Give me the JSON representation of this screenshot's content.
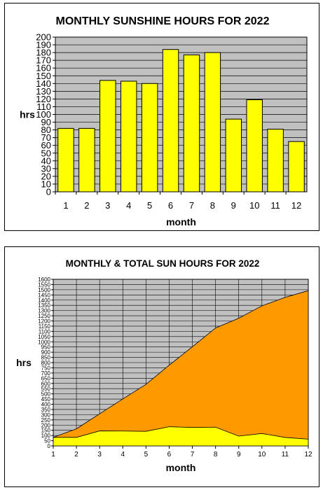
{
  "chart_data": [
    {
      "type": "bar",
      "title": "MONTHLY SUNSHINE HOURS FOR 2022",
      "xlabel": "month",
      "ylabel": "hrs",
      "categories": [
        "1",
        "2",
        "3",
        "4",
        "5",
        "6",
        "7",
        "8",
        "9",
        "10",
        "11",
        "12"
      ],
      "values": [
        82,
        82,
        144,
        143,
        140,
        184,
        177,
        180,
        94,
        119,
        81,
        65
      ],
      "ylim": [
        0,
        200
      ],
      "ytick_step": 10,
      "grid": true,
      "colors": {
        "plot_bg": "#c0c0c0",
        "bar": "#ffff00",
        "bar_edge": "#000000",
        "grid": "#000000"
      }
    },
    {
      "type": "area",
      "title": "MONTHLY & TOTAL SUN HOURS FOR 2022",
      "xlabel": "month",
      "ylabel": "hrs",
      "x": [
        "1",
        "2",
        "3",
        "4",
        "5",
        "6",
        "7",
        "8",
        "9",
        "10",
        "11",
        "12"
      ],
      "series": [
        {
          "name": "",
          "values": [
            82,
            164,
            308,
            451,
            591,
            775,
            952,
            1132,
            1226,
            1345,
            1426,
            1491
          ],
          "color": "#ff9900"
        },
        {
          "name": "",
          "values": [
            82,
            82,
            144,
            143,
            140,
            184,
            177,
            180,
            94,
            119,
            81,
            65
          ],
          "color": "#ffff00"
        }
      ],
      "ylim": [
        0,
        1600
      ],
      "ytick_step": 50,
      "grid": true,
      "colors": {
        "plot_bg": "#c0c0c0",
        "edge": "#000000"
      }
    }
  ]
}
